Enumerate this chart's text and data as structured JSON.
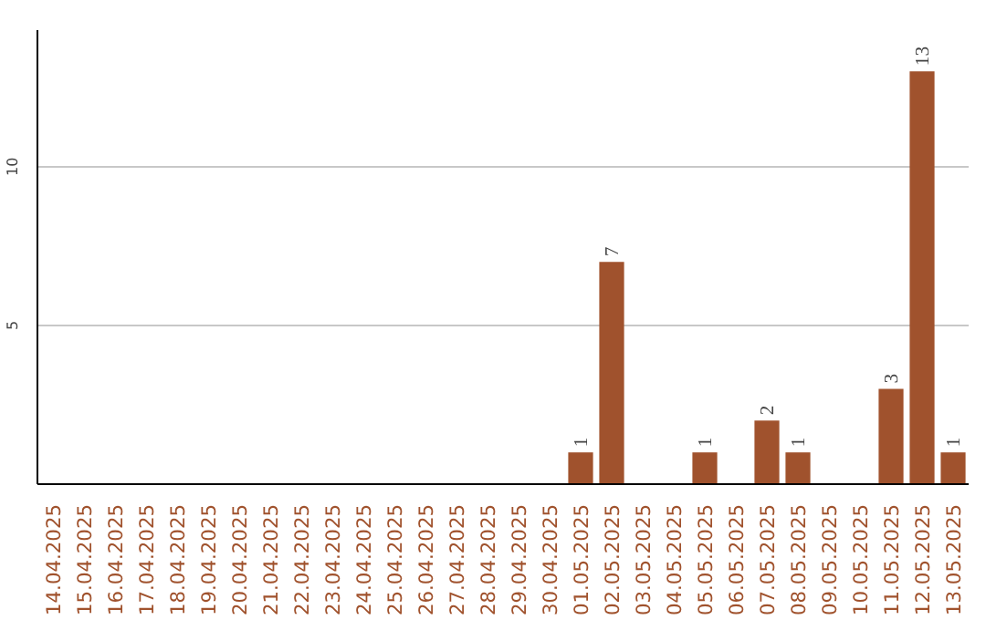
{
  "chart_data": {
    "type": "bar",
    "categories": [
      "14.04.2025",
      "15.04.2025",
      "16.04.2025",
      "17.04.2025",
      "18.04.2025",
      "19.04.2025",
      "20.04.2025",
      "21.04.2025",
      "22.04.2025",
      "23.04.2025",
      "24.04.2025",
      "25.04.2025",
      "26.04.2025",
      "27.04.2025",
      "28.04.2025",
      "29.04.2025",
      "30.04.2025",
      "01.05.2025",
      "02.05.2025",
      "03.05.2025",
      "04.05.2025",
      "05.05.2025",
      "06.05.2025",
      "07.05.2025",
      "08.05.2025",
      "09.05.2025",
      "10.05.2025",
      "11.05.2025",
      "12.05.2025",
      "13.05.2025"
    ],
    "values": [
      0,
      0,
      0,
      0,
      0,
      0,
      0,
      0,
      0,
      0,
      0,
      0,
      0,
      0,
      0,
      0,
      0,
      1,
      7,
      0,
      0,
      1,
      0,
      2,
      1,
      0,
      0,
      3,
      13,
      1
    ],
    "value_labels": [
      null,
      null,
      null,
      null,
      null,
      null,
      null,
      null,
      null,
      null,
      null,
      null,
      null,
      null,
      null,
      null,
      null,
      "1",
      "7",
      null,
      null,
      "1",
      null,
      "2",
      "1",
      null,
      null,
      "3",
      "13",
      "1"
    ],
    "color": "#a0522d",
    "ylim": [
      0,
      14.3
    ],
    "yticks": [
      5,
      10
    ],
    "grid": "y"
  }
}
